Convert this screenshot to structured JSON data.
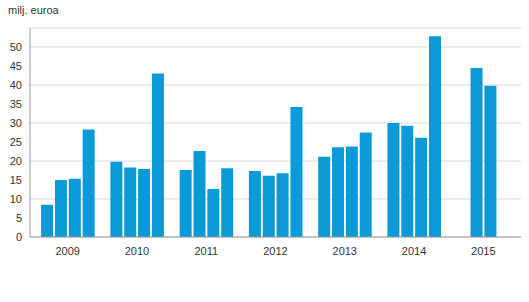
{
  "chart_data": {
    "type": "bar",
    "ylabel": "milj. euroa",
    "categories": [
      null,
      "2009",
      null,
      null,
      null,
      null,
      "2010",
      null,
      null,
      null,
      null,
      "2011",
      null,
      null,
      null,
      null,
      "2012",
      null,
      null,
      null,
      null,
      "2013",
      null,
      null,
      null,
      null,
      "2014",
      null,
      null,
      null,
      null,
      "2015",
      null,
      null
    ],
    "values": [
      8.5,
      15.0,
      15.3,
      28.3,
      null,
      19.8,
      18.3,
      17.9,
      43.0,
      null,
      17.6,
      22.6,
      12.6,
      18.1,
      null,
      17.4,
      16.1,
      16.8,
      34.2,
      null,
      21.1,
      23.6,
      23.8,
      27.5,
      null,
      30.0,
      29.3,
      26.1,
      52.8,
      null,
      null,
      44.5,
      39.8,
      null
    ],
    "color": "#0a9ad7",
    "ylim": [
      0,
      55
    ],
    "yticks": [
      0,
      5,
      10,
      15,
      20,
      25,
      30,
      35,
      40,
      45,
      50
    ],
    "grid": true
  }
}
